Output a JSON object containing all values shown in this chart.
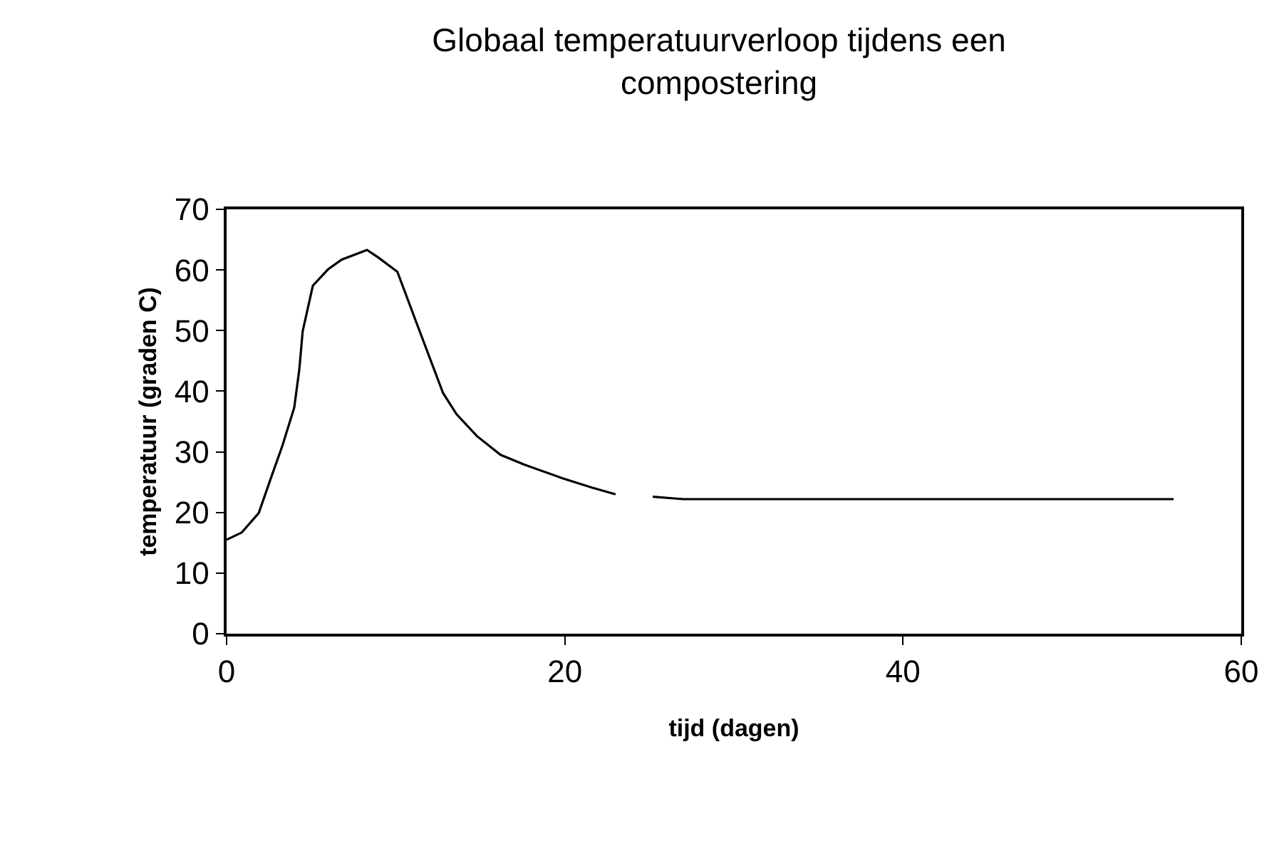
{
  "chart_data": {
    "type": "line",
    "title": "Globaal temperatuurverloop tijdens een compostering",
    "xlabel": "tijd (dagen)",
    "ylabel": "temperatuur (graden C)",
    "x": [
      0,
      0.9,
      1.9,
      2.6,
      3.3,
      4.0,
      4.3,
      4.5,
      5.1,
      6.0,
      6.8,
      8.3,
      9.0,
      10.1,
      11.2,
      12.8,
      13.6,
      14.8,
      16.2,
      17.6,
      19.9,
      21.6,
      23.0,
      null,
      25.2,
      27.0,
      56.0
    ],
    "series": [
      {
        "color": "#000000",
        "values": [
          15.5,
          16.7,
          19.9,
          25.5,
          31,
          37.3,
          43.6,
          49.9,
          57.4,
          60.1,
          61.7,
          63.3,
          62,
          59.7,
          51.5,
          39.7,
          36.2,
          32.6,
          29.5,
          27.9,
          25.6,
          24.1,
          23.0,
          null,
          22.6,
          22.2,
          22.2
        ]
      }
    ],
    "xlim": [
      0,
      60
    ],
    "xticks": [
      0,
      20,
      40,
      60
    ],
    "ylim": [
      0,
      70
    ],
    "yticks": [
      0,
      10,
      20,
      30,
      40,
      50,
      60,
      70
    ],
    "marker": "none",
    "line_style": "solid"
  }
}
